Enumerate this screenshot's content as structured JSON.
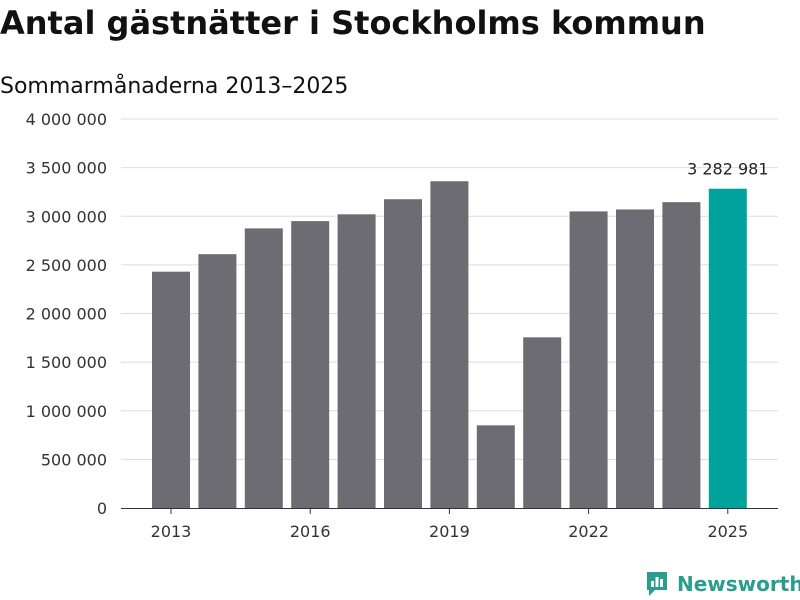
{
  "title": "Antal gästnätter i Stockholms kommun",
  "subtitle": "Sommarmånaderna 2013–2025",
  "brand": "Newsworthy",
  "colors": {
    "bar": "#6d6c72",
    "highlight": "#00a39b",
    "grid": "#dddddd",
    "axis": "#333333",
    "brand": "#2a9d8f"
  },
  "chart_data": {
    "type": "bar",
    "categories": [
      "2013",
      "2014",
      "2015",
      "2016",
      "2017",
      "2018",
      "2019",
      "2020",
      "2021",
      "2022",
      "2023",
      "2024",
      "2025"
    ],
    "values": [
      2430000,
      2610000,
      2875000,
      2950000,
      3020000,
      3175000,
      3360000,
      850000,
      1755000,
      3050000,
      3070000,
      3145000,
      3282981
    ],
    "highlight_index": 12,
    "ylim": [
      0,
      4000000
    ],
    "yticks": [
      0,
      500000,
      1000000,
      1500000,
      2000000,
      2500000,
      3000000,
      3500000,
      4000000
    ],
    "ytick_labels": [
      "0",
      "500 000",
      "1 000 000",
      "1 500 000",
      "2 000 000",
      "2 500 000",
      "3 000 000",
      "3 500 000",
      "4 000 000"
    ],
    "xtick_labels": [
      "2013",
      "2016",
      "2019",
      "2022",
      "2025"
    ],
    "annotations": [
      {
        "category": "2025",
        "text": "3 282 981"
      }
    ],
    "grid": true,
    "xlabel": "",
    "ylabel": ""
  }
}
